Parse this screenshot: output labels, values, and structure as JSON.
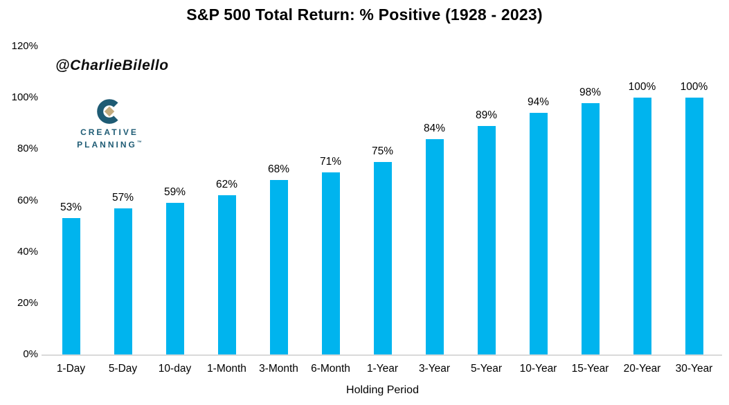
{
  "header": {
    "title": "S&P 500 Total Return: % Positive (1928 - 2023)"
  },
  "watermark": "@CharlieBilello",
  "logo": {
    "line1": "CREATIVE",
    "line2": "PLANNING",
    "tm": "™",
    "teal": "#1E5B74",
    "tan": "#C2AB7E"
  },
  "chart_data": {
    "type": "bar",
    "title": "S&P 500 Total Return: % Positive (1928 - 2023)",
    "categories": [
      "1-Day",
      "5-Day",
      "10-day",
      "1-Month",
      "3-Month",
      "6-Month",
      "1-Year",
      "3-Year",
      "5-Year",
      "10-Year",
      "15-Year",
      "20-Year",
      "30-Year"
    ],
    "values": [
      53,
      57,
      59,
      62,
      68,
      71,
      75,
      84,
      89,
      94,
      98,
      100,
      100
    ],
    "value_labels": [
      "53%",
      "57%",
      "59%",
      "62%",
      "68%",
      "71%",
      "75%",
      "84%",
      "89%",
      "94%",
      "98%",
      "100%",
      "100%"
    ],
    "xlabel": "Holding Period",
    "ylabel": "",
    "ylim": [
      0,
      120
    ],
    "ytick_values": [
      120,
      100,
      80,
      60,
      40,
      20,
      0
    ],
    "ytick_labels": [
      "120%",
      "100%",
      "80%",
      "60%",
      "40%",
      "20%",
      "0%"
    ],
    "bar_color": "#00B4EE",
    "axis_line_color": "#D9D9D9",
    "grid": false,
    "legend": null
  }
}
